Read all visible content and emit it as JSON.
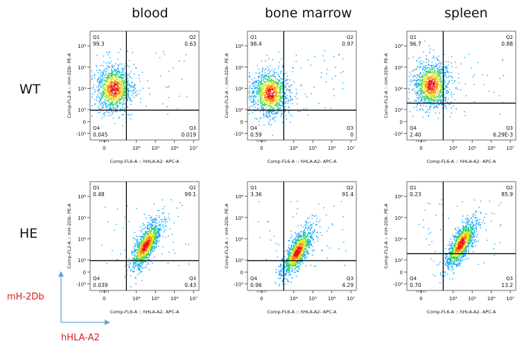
{
  "column_titles": [
    "blood",
    "bone marrow",
    "spleen"
  ],
  "row_titles": [
    "WT",
    "HE"
  ],
  "axis_legend": {
    "y": "mH-2Db",
    "x": "hHLA-A2"
  },
  "colors": {
    "gate": "#000000",
    "legend": "#d42020",
    "arrow": "#6aa0d8"
  },
  "chart_data": [
    {
      "type": "scatter",
      "row": "WT",
      "sample": "blood",
      "xlabel": "Comp-FL6-A :: hHLA-A2- APC-A",
      "ylabel": "Comp-FL2-A :: mH-2Db- PE-A",
      "x_ticks": [
        "0",
        "10⁴",
        "10⁵",
        "10⁶",
        "10⁷"
      ],
      "y_ticks": [
        "10⁶",
        "10⁵",
        "10⁴",
        "10³",
        "0",
        "-10³"
      ],
      "gate": {
        "x": 3000,
        "y": 700
      },
      "quadrants": {
        "Q1": "99.3",
        "Q2": "0.63",
        "Q3": "0.019",
        "Q4": "0.045"
      },
      "population": {
        "center": [
          150,
          10000
        ],
        "spread": "broad"
      }
    },
    {
      "type": "scatter",
      "row": "WT",
      "sample": "bone marrow",
      "xlabel": "Comp-FL6-A :: hHLA-A2- APC-A",
      "ylabel": "Comp-FL2-A :: mH-2Db- PE-A",
      "x_ticks": [
        "0",
        "10⁴",
        "10⁵",
        "10⁶",
        "10⁷"
      ],
      "y_ticks": [
        "10⁶",
        "10⁵",
        "10⁴",
        "10³",
        "0",
        "-10³"
      ],
      "gate": {
        "x": 3000,
        "y": 700
      },
      "quadrants": {
        "Q1": "98.4",
        "Q2": "0.97",
        "Q3": "0",
        "Q4": "0.59"
      },
      "population": {
        "center": [
          80,
          6000
        ],
        "spread": "broad"
      }
    },
    {
      "type": "scatter",
      "row": "WT",
      "sample": "spleen",
      "xlabel": "Comp-FL6-A :: hHLA-A2- APC-A",
      "ylabel": "Comp-FL2-A :: mH-2Db- PE-A",
      "x_ticks": [
        "0",
        "10⁴",
        "10⁵",
        "10⁶",
        "10⁷"
      ],
      "y_ticks": [
        "10⁶",
        "10⁵",
        "10⁴",
        "10³",
        "0",
        "-10³"
      ],
      "gate": {
        "x": 3000,
        "y": 2000
      },
      "quadrants": {
        "Q1": "96.7",
        "Q2": "0.88",
        "Q3": "6.29E-3",
        "Q4": "2.40"
      },
      "population": {
        "center": [
          200,
          15000
        ],
        "spread": "broad"
      }
    },
    {
      "type": "scatter",
      "row": "HE",
      "sample": "blood",
      "xlabel": "Comp-FL6-A :: hHLA-A2- APC-A",
      "ylabel": "Comp-FL2-A :: mH-2Db- PE-A",
      "x_ticks": [
        "0",
        "10⁴",
        "10⁵",
        "10⁶",
        "10⁷"
      ],
      "y_ticks": [
        "10⁶",
        "10⁵",
        "10⁴",
        "10³",
        "0",
        "-10³"
      ],
      "gate": {
        "x": 3000,
        "y": 700
      },
      "quadrants": {
        "Q1": "0.48",
        "Q2": "99.1",
        "Q3": "0.43",
        "Q4": "0.039"
      },
      "population": {
        "center": [
          30000,
          5000
        ],
        "spread": "diagonal"
      }
    },
    {
      "type": "scatter",
      "row": "HE",
      "sample": "bone marrow",
      "xlabel": "Comp-FL6-A :: hHLA-A2- APC-A",
      "ylabel": "Comp-FL2-A :: mH-2Db- PE-A",
      "x_ticks": [
        "0",
        "10⁴",
        "10⁵",
        "10⁶",
        "10⁷"
      ],
      "y_ticks": [
        "10⁶",
        "10⁵",
        "10⁴",
        "10³",
        "0",
        "-10³"
      ],
      "gate": {
        "x": 3000,
        "y": 700
      },
      "quadrants": {
        "Q1": "3.36",
        "Q2": "91.4",
        "Q3": "4.29",
        "Q4": "0.96"
      },
      "population": {
        "center": [
          15000,
          2500
        ],
        "spread": "diagonal"
      }
    },
    {
      "type": "scatter",
      "row": "HE",
      "sample": "spleen",
      "xlabel": "Comp-FL6-A :: hHLA-A2- APC-A",
      "ylabel": "Comp-FL2-A :: mH-2Db- PE-A",
      "x_ticks": [
        "0",
        "10⁴",
        "10⁵",
        "10⁶",
        "10⁷"
      ],
      "y_ticks": [
        "10⁶",
        "10⁵",
        "10⁴",
        "10³",
        "0",
        "-10³"
      ],
      "gate": {
        "x": 3000,
        "y": 2000
      },
      "quadrants": {
        "Q1": "0.23",
        "Q2": "85.9",
        "Q3": "13.2",
        "Q4": "0.70"
      },
      "population": {
        "center": [
          25000,
          6000
        ],
        "spread": "diagonal"
      }
    }
  ]
}
